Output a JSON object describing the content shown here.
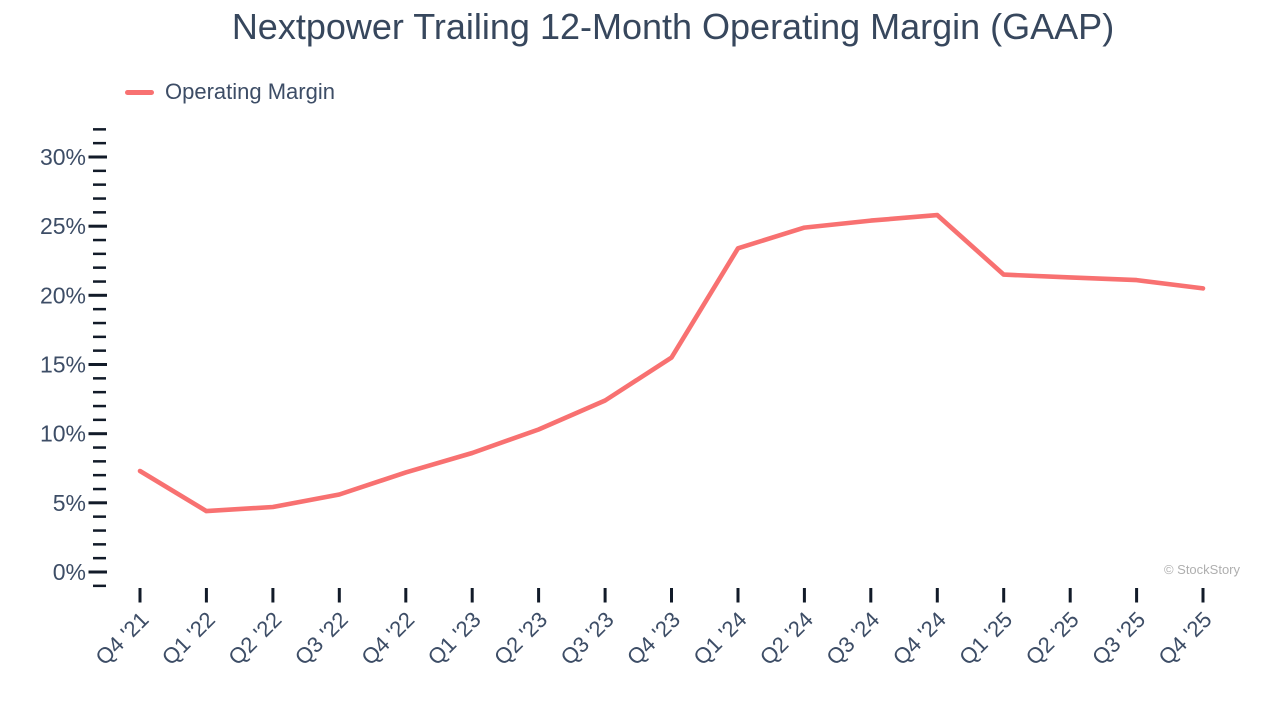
{
  "title": "Nextpower Trailing 12-Month Operating Margin (GAAP)",
  "legend": {
    "label": "Operating Margin"
  },
  "watermark": "© StockStory",
  "colors": {
    "line": "#F87171",
    "title_text": "#37475D",
    "axis_text": "#3D4D66",
    "tick": "#121B29",
    "watermark_text": "#AFAFAF",
    "background": "#FFFFFF"
  },
  "chart_data": {
    "type": "line",
    "title": "Nextpower Trailing 12-Month Operating Margin (GAAP)",
    "categories": [
      "Q4 '21",
      "Q1 '22",
      "Q2 '22",
      "Q3 '22",
      "Q4 '22",
      "Q1 '23",
      "Q2 '23",
      "Q3 '23",
      "Q4 '23",
      "Q1 '24",
      "Q2 '24",
      "Q3 '24",
      "Q4 '24",
      "Q1 '25",
      "Q2 '25",
      "Q3 '25",
      "Q4 '25"
    ],
    "series": [
      {
        "name": "Operating Margin",
        "unit": "%",
        "values": [
          7.3,
          4.4,
          4.7,
          5.6,
          7.2,
          8.6,
          10.3,
          12.4,
          15.5,
          23.4,
          24.9,
          25.4,
          25.8,
          21.5,
          21.3,
          21.1,
          20.5
        ]
      }
    ],
    "xlabel": "",
    "ylabel": "",
    "ylim": [
      -1,
      32
    ],
    "ytick_major_step": 5,
    "ytick_minor_step": 1,
    "ytick_major_labels": [
      "0%",
      "5%",
      "10%",
      "15%",
      "20%",
      "25%",
      "30%"
    ],
    "ytick_major_values": [
      0,
      5,
      10,
      15,
      20,
      25,
      30
    ],
    "grid": false,
    "legend_position": "top-left"
  }
}
